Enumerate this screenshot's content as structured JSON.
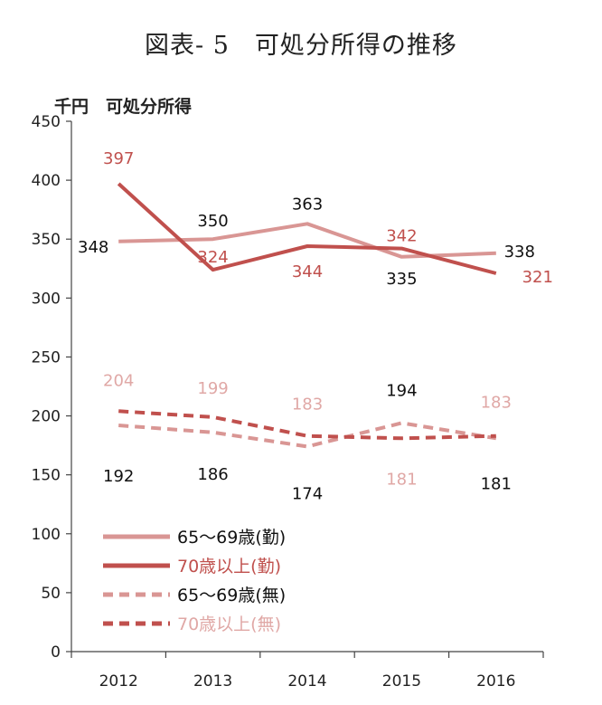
{
  "title": "図表- 5　可処分所得の推移",
  "chart_data": {
    "type": "line",
    "title": "図表- 5　可処分所得の推移",
    "ylabel": "千円　可処分所得",
    "xlabel": "",
    "x": [
      "2012",
      "2013",
      "2014",
      "2015",
      "2016"
    ],
    "ylim": [
      0,
      450
    ],
    "yticks": [
      0,
      50,
      100,
      150,
      200,
      250,
      300,
      350,
      400,
      450
    ],
    "grid": false,
    "legend_position": "bottom-left",
    "series": [
      {
        "name": "65～69歳(勤)",
        "values": [
          348,
          350,
          363,
          335,
          338
        ],
        "color": "#d99694",
        "style": "solid",
        "labels": [
          "348",
          "350",
          "363",
          "335",
          "338"
        ],
        "label_color": "#111111"
      },
      {
        "name": "70歳以上(勤)",
        "values": [
          397,
          324,
          344,
          342,
          321
        ],
        "color": "#c0504d",
        "style": "solid",
        "labels": [
          "397",
          "324",
          "344",
          "342",
          "321"
        ],
        "label_color": "#c0504d"
      },
      {
        "name": "65～69歳(無)",
        "values": [
          192,
          186,
          174,
          194,
          181
        ],
        "color": "#d99694",
        "style": "dashed",
        "labels": [
          "192",
          "186",
          "174",
          "194",
          "181"
        ],
        "label_color": "#111111"
      },
      {
        "name": "70歳以上(無)",
        "values": [
          204,
          199,
          183,
          181,
          183
        ],
        "color": "#c0504d",
        "style": "dashed",
        "labels": [
          "204",
          "199",
          "183",
          "181",
          "183"
        ],
        "label_color": "#e0a8a6"
      }
    ]
  }
}
